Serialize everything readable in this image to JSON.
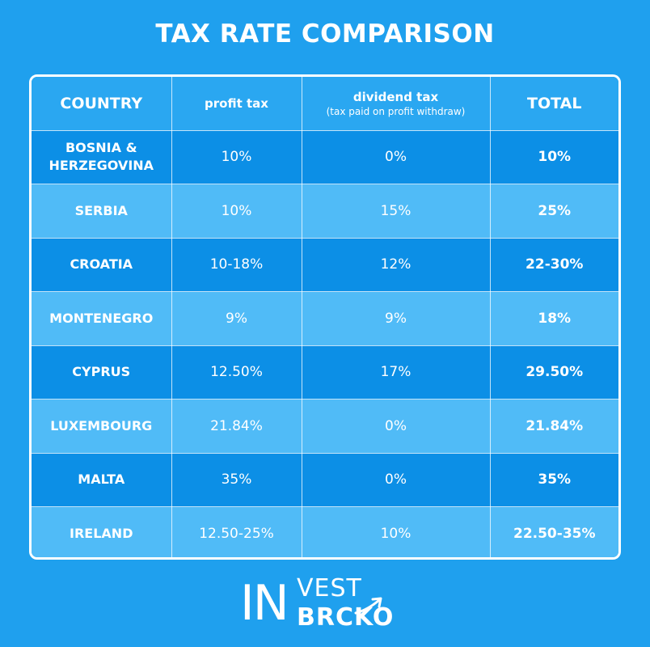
{
  "title": "TAX RATE COMPARISON",
  "table": {
    "headers": {
      "country": "COUNTRY",
      "profit_tax": "profit tax",
      "dividend_tax": "dividend tax",
      "dividend_tax_note": "(tax paid on profit withdraw)",
      "total": "TOTAL"
    },
    "rows": [
      {
        "country_line1": "BOSNIA &",
        "country_line2": "HERZEGOVINA",
        "profit_tax": "10%",
        "dividend_tax": "0%",
        "total": "10%"
      },
      {
        "country": "SERBIA",
        "profit_tax": "10%",
        "dividend_tax": "15%",
        "total": "25%"
      },
      {
        "country": "CROATIA",
        "profit_tax": "10-18%",
        "dividend_tax": "12%",
        "total": "22-30%"
      },
      {
        "country": "MONTENEGRO",
        "profit_tax": "9%",
        "dividend_tax": "9%",
        "total": "18%"
      },
      {
        "country": "CYPRUS",
        "profit_tax": "12.50%",
        "dividend_tax": "17%",
        "total": "29.50%"
      },
      {
        "country": "LUXEMBOURG",
        "profit_tax": "21.84%",
        "dividend_tax": "0%",
        "total": "21.84%"
      },
      {
        "country": "MALTA",
        "profit_tax": "35%",
        "dividend_tax": "0%",
        "total": "35%"
      },
      {
        "country": "IRELAND",
        "profit_tax": "12.50-25%",
        "dividend_tax": "10%",
        "total": "22.50-35%"
      }
    ]
  },
  "logo": {
    "in": "IN",
    "vest": "VEST",
    "brcko": "BRCKO"
  },
  "colors": {
    "background": "#1fa0ee",
    "row_dark": "#0c8fe6",
    "row_light": "#50bbf7",
    "text": "#ffffff"
  }
}
